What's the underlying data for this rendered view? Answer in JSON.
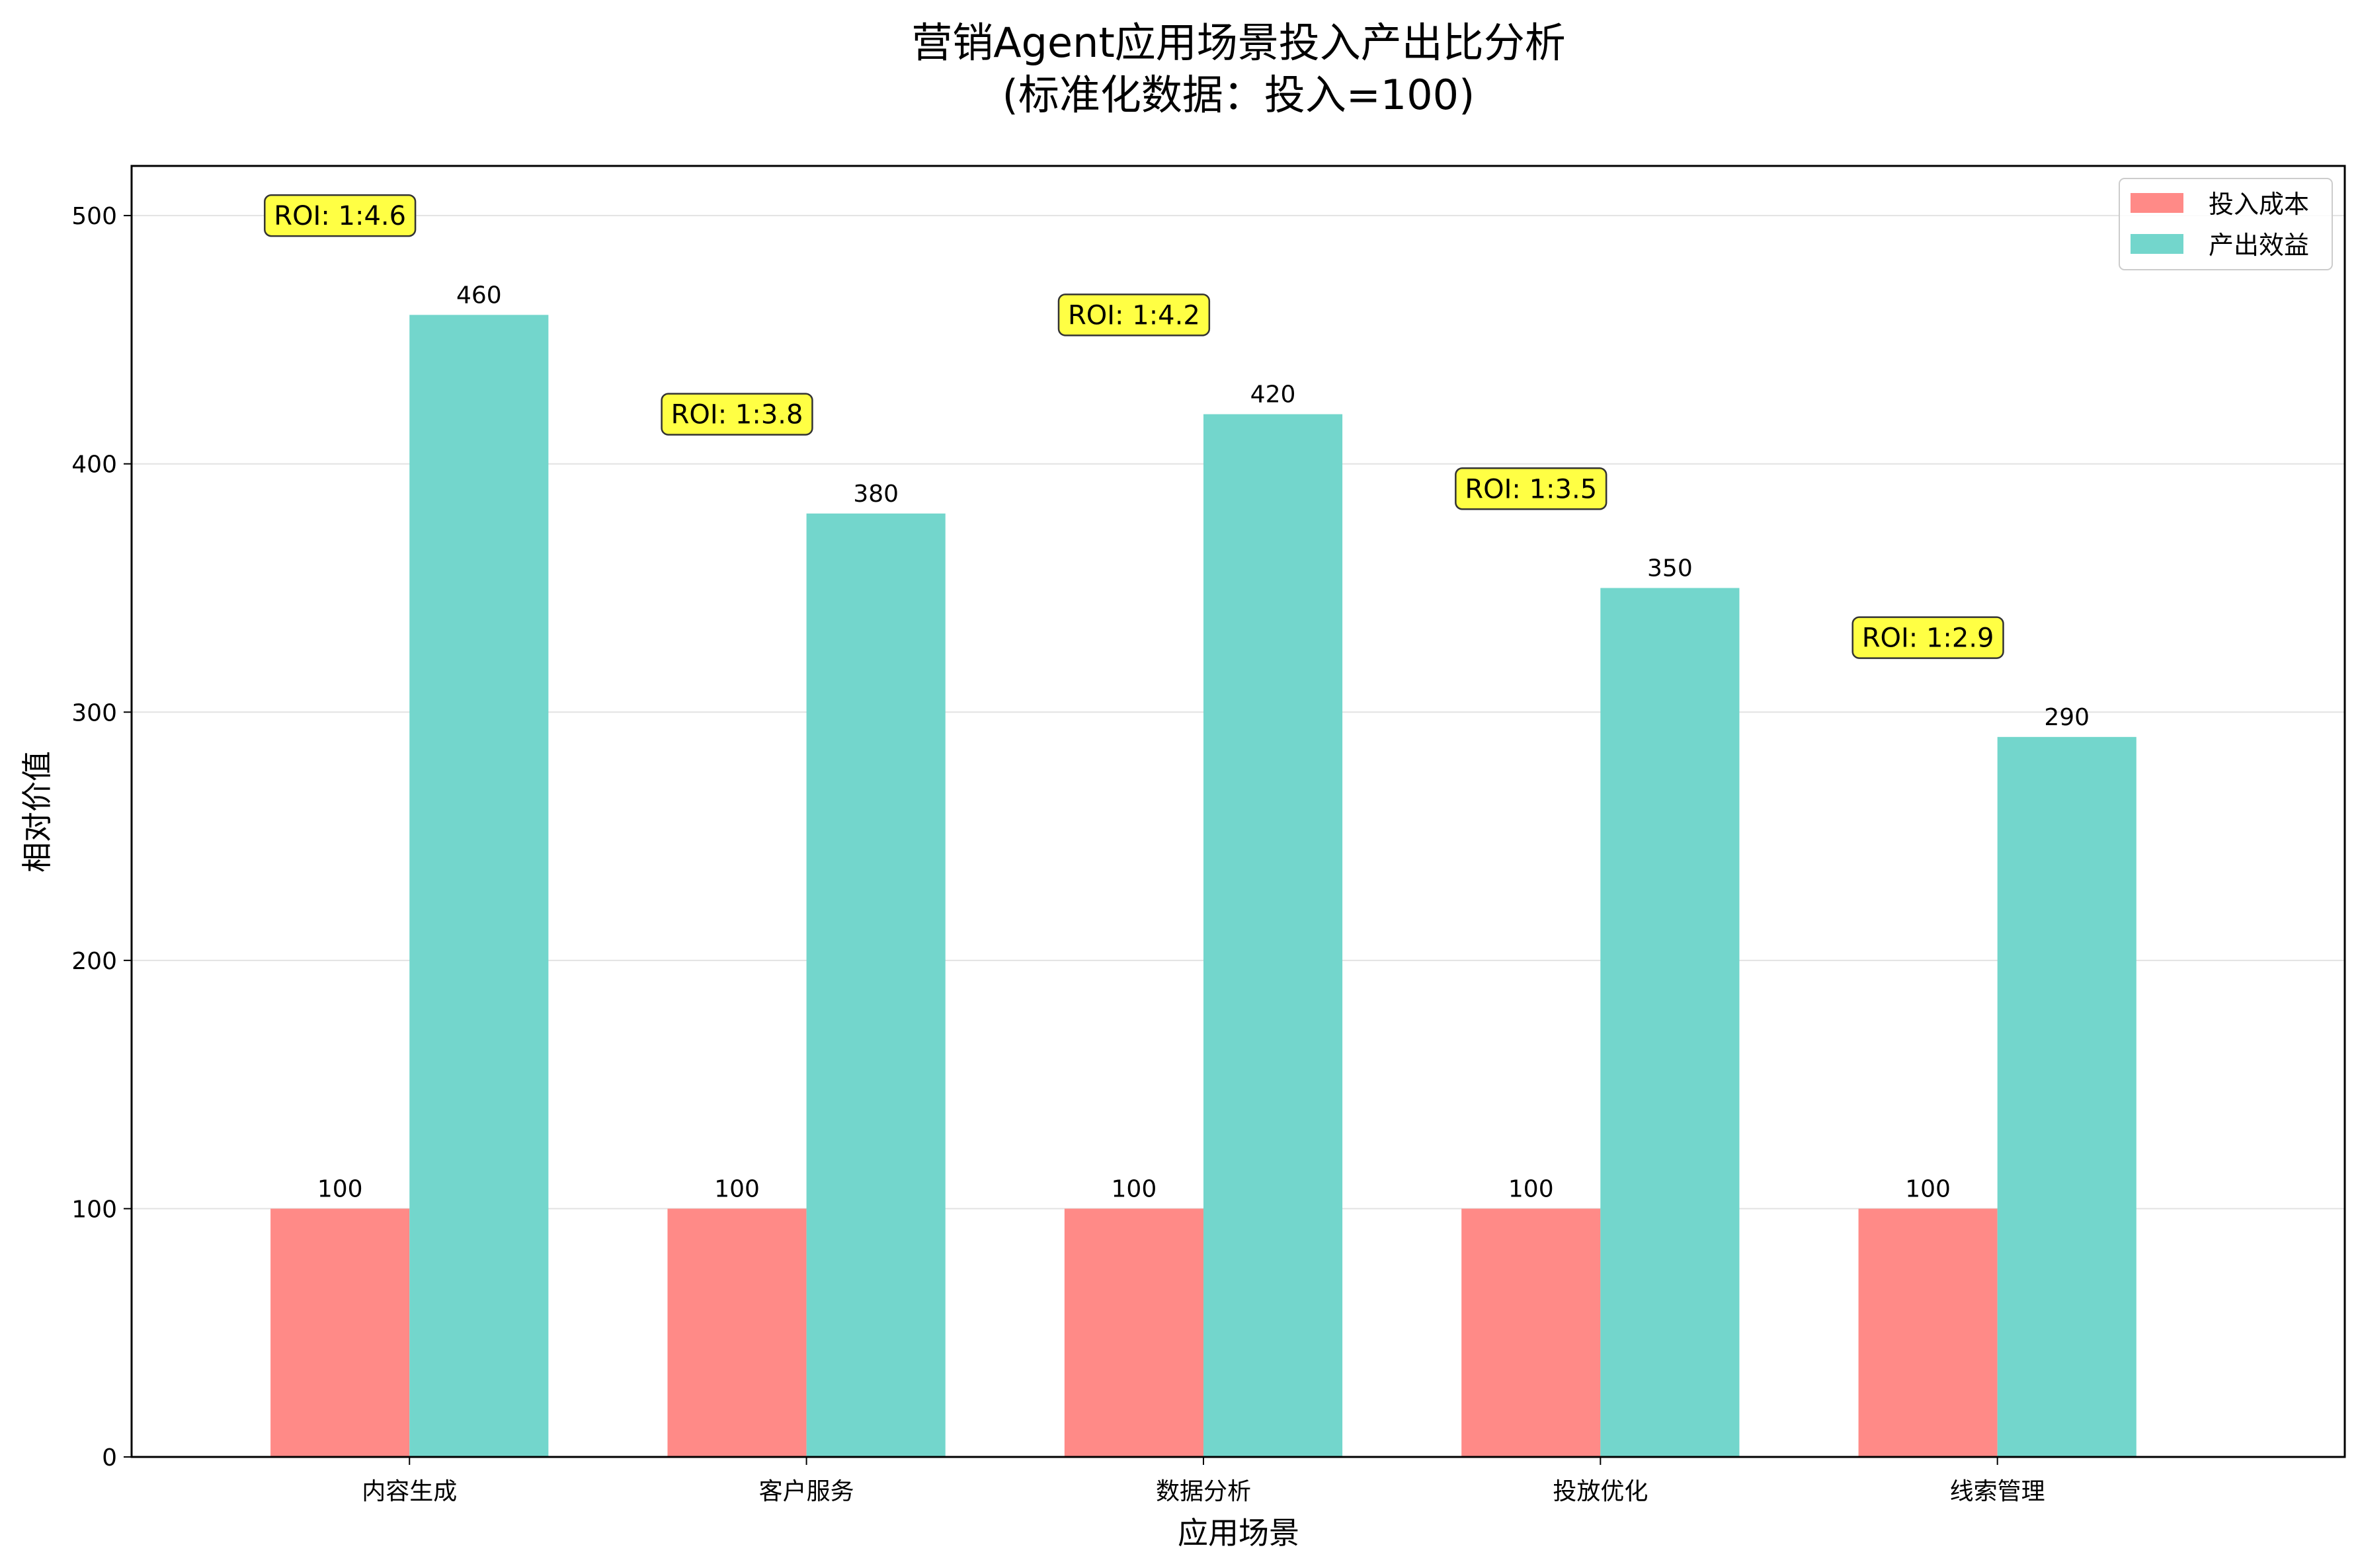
{
  "chart_data": {
    "type": "bar",
    "title": "营销Agent应用场景投入产出比分析",
    "subtitle": "(标准化数据：投入=100)",
    "xlabel": "应用场景",
    "ylabel": "相对价值",
    "categories": [
      "内容生成",
      "客户服务",
      "数据分析",
      "投放优化",
      "线索管理"
    ],
    "series": [
      {
        "name": "投入成本",
        "values": [
          100,
          100,
          100,
          100,
          100
        ],
        "labels": [
          "100",
          "100",
          "100",
          "100",
          "100"
        ],
        "color": "#FF8A87"
      },
      {
        "name": "产出效益",
        "values": [
          460,
          380,
          420,
          350,
          290
        ],
        "labels": [
          "460",
          "380",
          "420",
          "350",
          "290"
        ],
        "color": "#73D6CC"
      }
    ],
    "annotations": [
      "ROI: 1:4.6",
      "ROI: 1:3.8",
      "ROI: 1:4.2",
      "ROI: 1:3.5",
      "ROI: 1:2.9"
    ],
    "annotation_color": "#FFFF44",
    "ylim": [
      0,
      520
    ],
    "yticks": [
      0,
      100,
      200,
      300,
      400,
      500
    ],
    "ytick_labels": [
      "0",
      "100",
      "200",
      "300",
      "400",
      "500"
    ],
    "grid": true,
    "legend_position": "top-right"
  }
}
